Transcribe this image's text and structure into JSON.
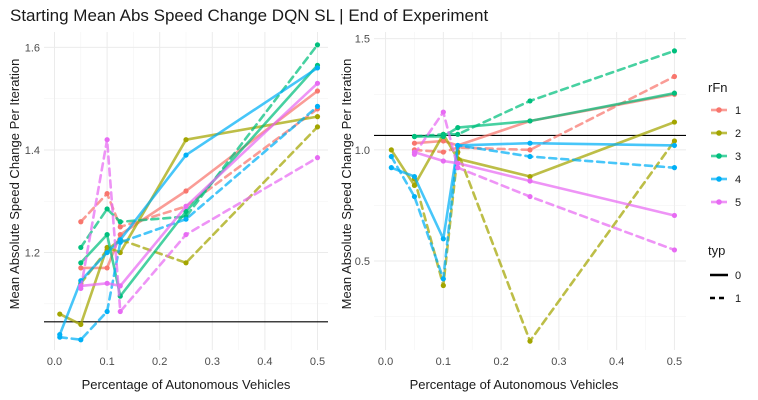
{
  "chart_data": {
    "type": "line",
    "title": "Starting Mean Abs Speed Change DQN SL | End of Experiment",
    "xlabel": "Percentage of Autonomous Vehicles",
    "ylabel": "Mean Absolute Speed Change Per Iteration",
    "grid": true,
    "legend_position": "right",
    "legends": {
      "color": {
        "title": "rFn",
        "entries": [
          {
            "label": "1",
            "color": "#F8766D"
          },
          {
            "label": "2",
            "color": "#A3A500"
          },
          {
            "label": "3",
            "color": "#00BF7D"
          },
          {
            "label": "4",
            "color": "#00B0F6"
          },
          {
            "label": "5",
            "color": "#E76BF3"
          }
        ]
      },
      "linetype": {
        "title": "typ",
        "entries": [
          {
            "label": "0",
            "dash": "solid"
          },
          {
            "label": "1",
            "dash": "dashed"
          }
        ]
      }
    },
    "panels": [
      {
        "xlim": [
          -0.02,
          0.52
        ],
        "ylim": [
          1.01,
          1.63
        ],
        "xticks": [
          0.0,
          0.1,
          0.2,
          0.3,
          0.4,
          0.5
        ],
        "xtick_labels": [
          "0.0",
          "0.1",
          "0.2",
          "0.3",
          "0.4",
          "0.5"
        ],
        "yticks": [
          1.2,
          1.4,
          1.6
        ],
        "ytick_labels": [
          "1.2",
          "1.4",
          "1.6"
        ],
        "hline": 1.065,
        "series": [
          {
            "rFn": "1",
            "typ": "0",
            "points": [
              [
                0.05,
                1.17
              ],
              [
                0.1,
                1.17
              ],
              [
                0.125,
                1.235
              ],
              [
                0.25,
                1.32
              ],
              [
                0.5,
                1.515
              ]
            ]
          },
          {
            "rFn": "1",
            "typ": "1",
            "points": [
              [
                0.05,
                1.26
              ],
              [
                0.1,
                1.315
              ],
              [
                0.125,
                1.25
              ],
              [
                0.25,
                1.29
              ],
              [
                0.5,
                1.48
              ]
            ]
          },
          {
            "rFn": "2",
            "typ": "0",
            "points": [
              [
                0.01,
                1.08
              ],
              [
                0.05,
                1.06
              ],
              [
                0.1,
                1.21
              ],
              [
                0.125,
                1.2
              ],
              [
                0.25,
                1.42
              ],
              [
                0.5,
                1.465
              ]
            ]
          },
          {
            "rFn": "2",
            "typ": "1",
            "points": [
              [
                0.05,
                1.14
              ],
              [
                0.1,
                1.205
              ],
              [
                0.125,
                1.225
              ],
              [
                0.25,
                1.18
              ],
              [
                0.5,
                1.445
              ]
            ]
          },
          {
            "rFn": "3",
            "typ": "0",
            "points": [
              [
                0.05,
                1.18
              ],
              [
                0.1,
                1.235
              ],
              [
                0.125,
                1.115
              ],
              [
                0.25,
                1.28
              ],
              [
                0.5,
                1.565
              ]
            ]
          },
          {
            "rFn": "3",
            "typ": "1",
            "points": [
              [
                0.05,
                1.21
              ],
              [
                0.1,
                1.285
              ],
              [
                0.125,
                1.26
              ],
              [
                0.25,
                1.27
              ],
              [
                0.5,
                1.605
              ]
            ]
          },
          {
            "rFn": "4",
            "typ": "0",
            "points": [
              [
                0.01,
                1.04
              ],
              [
                0.05,
                1.145
              ],
              [
                0.1,
                1.2
              ],
              [
                0.125,
                1.225
              ],
              [
                0.25,
                1.39
              ],
              [
                0.5,
                1.56
              ]
            ]
          },
          {
            "rFn": "4",
            "typ": "1",
            "points": [
              [
                0.01,
                1.035
              ],
              [
                0.05,
                1.03
              ],
              [
                0.1,
                1.085
              ],
              [
                0.125,
                1.22
              ],
              [
                0.25,
                1.265
              ],
              [
                0.5,
                1.485
              ]
            ]
          },
          {
            "rFn": "5",
            "typ": "0",
            "points": [
              [
                0.05,
                1.135
              ],
              [
                0.1,
                1.14
              ],
              [
                0.125,
                1.135
              ],
              [
                0.25,
                1.29
              ],
              [
                0.5,
                1.53
              ]
            ]
          },
          {
            "rFn": "5",
            "typ": "1",
            "points": [
              [
                0.05,
                1.13
              ],
              [
                0.1,
                1.42
              ],
              [
                0.125,
                1.085
              ],
              [
                0.25,
                1.235
              ],
              [
                0.5,
                1.385
              ]
            ]
          }
        ]
      },
      {
        "xlim": [
          -0.02,
          0.52
        ],
        "ylim": [
          0.1,
          1.53
        ],
        "xticks": [
          0.0,
          0.1,
          0.2,
          0.3,
          0.4,
          0.5
        ],
        "xtick_labels": [
          "0.0",
          "0.1",
          "0.2",
          "0.3",
          "0.4",
          "0.5"
        ],
        "yticks": [
          0.5,
          1.0,
          1.5
        ],
        "ytick_labels": [
          "0.5",
          "1.0",
          "1.5"
        ],
        "hline": 1.065,
        "series": [
          {
            "rFn": "1",
            "typ": "0",
            "points": [
              [
                0.05,
                1.03
              ],
              [
                0.1,
                1.04
              ],
              [
                0.125,
                1.02
              ],
              [
                0.25,
                1.13
              ],
              [
                0.5,
                1.25
              ]
            ]
          },
          {
            "rFn": "1",
            "typ": "1",
            "points": [
              [
                0.05,
                1.0
              ],
              [
                0.1,
                0.99
              ],
              [
                0.125,
                1.01
              ],
              [
                0.25,
                1.0
              ],
              [
                0.5,
                1.33
              ]
            ]
          },
          {
            "rFn": "2",
            "typ": "0",
            "points": [
              [
                0.01,
                1.0
              ],
              [
                0.05,
                0.84
              ],
              [
                0.1,
                1.07
              ],
              [
                0.125,
                0.96
              ],
              [
                0.25,
                0.88
              ],
              [
                0.5,
                1.125
              ]
            ]
          },
          {
            "rFn": "2",
            "typ": "1",
            "points": [
              [
                0.05,
                0.87
              ],
              [
                0.1,
                0.39
              ],
              [
                0.125,
                0.99
              ],
              [
                0.25,
                0.14
              ],
              [
                0.5,
                1.04
              ]
            ]
          },
          {
            "rFn": "3",
            "typ": "0",
            "points": [
              [
                0.05,
                1.06
              ],
              [
                0.1,
                1.06
              ],
              [
                0.125,
                1.1
              ],
              [
                0.25,
                1.13
              ],
              [
                0.5,
                1.255
              ]
            ]
          },
          {
            "rFn": "3",
            "typ": "1",
            "points": [
              [
                0.05,
                1.06
              ],
              [
                0.1,
                1.07
              ],
              [
                0.125,
                1.07
              ],
              [
                0.25,
                1.22
              ],
              [
                0.5,
                1.445
              ]
            ]
          },
          {
            "rFn": "4",
            "typ": "0",
            "points": [
              [
                0.01,
                0.92
              ],
              [
                0.05,
                0.88
              ],
              [
                0.1,
                0.6
              ],
              [
                0.125,
                1.02
              ],
              [
                0.25,
                1.03
              ],
              [
                0.5,
                1.02
              ]
            ]
          },
          {
            "rFn": "4",
            "typ": "1",
            "points": [
              [
                0.01,
                0.97
              ],
              [
                0.05,
                0.79
              ],
              [
                0.1,
                0.42
              ],
              [
                0.125,
                1.02
              ],
              [
                0.25,
                0.97
              ],
              [
                0.5,
                0.92
              ]
            ]
          },
          {
            "rFn": "5",
            "typ": "0",
            "points": [
              [
                0.05,
                0.99
              ],
              [
                0.1,
                0.95
              ],
              [
                0.125,
                0.94
              ],
              [
                0.25,
                0.86
              ],
              [
                0.5,
                0.705
              ]
            ]
          },
          {
            "rFn": "5",
            "typ": "1",
            "points": [
              [
                0.05,
                0.98
              ],
              [
                0.1,
                1.17
              ],
              [
                0.125,
                0.92
              ],
              [
                0.25,
                0.79
              ],
              [
                0.5,
                0.55
              ]
            ]
          }
        ]
      }
    ]
  }
}
